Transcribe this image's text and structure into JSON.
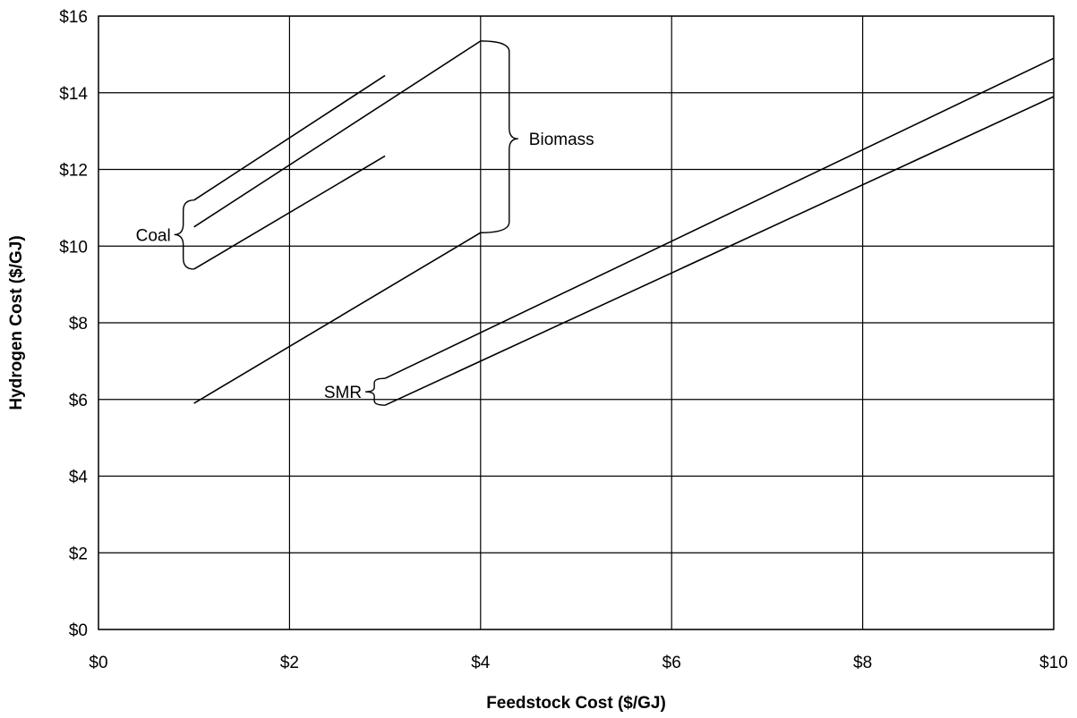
{
  "chart_data": {
    "type": "line",
    "title": "",
    "xlabel": "Feedstock Cost ($/GJ)",
    "ylabel": "Hydrogen Cost ($/GJ)",
    "xlim": [
      0,
      10
    ],
    "ylim": [
      0,
      16
    ],
    "x_ticks": [
      0,
      2,
      4,
      6,
      8,
      10
    ],
    "x_tick_labels": [
      "$0",
      "$2",
      "$4",
      "$6",
      "$8",
      "$10"
    ],
    "y_ticks": [
      0,
      2,
      4,
      6,
      8,
      10,
      12,
      14,
      16
    ],
    "y_tick_labels": [
      "$0",
      "$2",
      "$4",
      "$6",
      "$8",
      "$10",
      "$12",
      "$14",
      "$16"
    ],
    "grid": true,
    "line_color": "#000000",
    "series": [
      {
        "x": [
          1,
          3
        ],
        "y": [
          11.2,
          14.45
        ]
      },
      {
        "x": [
          1,
          4
        ],
        "y": [
          10.5,
          15.35
        ]
      },
      {
        "x": [
          1,
          3
        ],
        "y": [
          9.4,
          12.35
        ]
      },
      {
        "x": [
          1,
          4
        ],
        "y": [
          5.9,
          10.35
        ]
      },
      {
        "x": [
          3,
          10
        ],
        "y": [
          6.55,
          14.9
        ]
      },
      {
        "x": [
          3,
          10
        ],
        "y": [
          5.85,
          13.9
        ]
      }
    ],
    "annotations": [
      {
        "text": "Coal",
        "side": "left",
        "target_x": 1,
        "range": [
          9.4,
          11.2
        ],
        "label_y": 10.3
      },
      {
        "text": "Biomass",
        "side": "right",
        "target_x": 4,
        "range": [
          10.35,
          15.35
        ],
        "label_y": 12.8
      },
      {
        "text": "SMR",
        "side": "left",
        "target_x": 3,
        "range": [
          5.85,
          6.55
        ],
        "label_y": 6.2
      }
    ]
  }
}
